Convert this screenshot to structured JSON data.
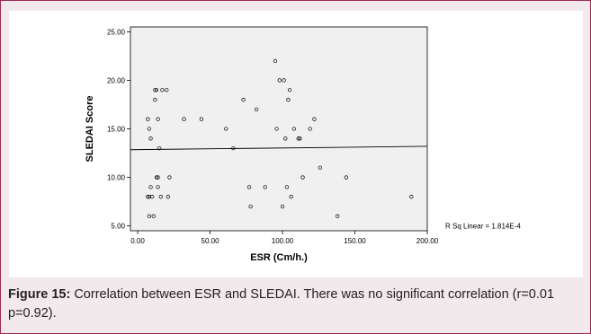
{
  "chart_data": {
    "type": "scatter",
    "xlabel": "ESR (Cm/h.)",
    "ylabel": "SLEDAI Score",
    "xlim": [
      -5,
      200
    ],
    "ylim": [
      4.5,
      25.5
    ],
    "x_ticks": [
      "0.00",
      "50.00",
      "100.00",
      "150.00",
      "200.00"
    ],
    "x_tick_values": [
      0,
      50,
      100,
      150,
      200
    ],
    "y_ticks": [
      "25.00",
      "20.00",
      "15.00",
      "10.00",
      "5.00"
    ],
    "y_tick_values": [
      25,
      20,
      15,
      10,
      5
    ],
    "grid": false,
    "plot_background": "#f0f0f0",
    "point_color": "#000000",
    "fit_line": {
      "x": [
        -5,
        200
      ],
      "y": [
        12.85,
        13.2
      ],
      "color": "#000000"
    },
    "annotation": "R Sq Linear = 1.814E-4",
    "points": [
      [
        7,
        16
      ],
      [
        8,
        15
      ],
      [
        9,
        14
      ],
      [
        7,
        8
      ],
      [
        8,
        8
      ],
      [
        10,
        8
      ],
      [
        9,
        9
      ],
      [
        8,
        6
      ],
      [
        11,
        6
      ],
      [
        12,
        19
      ],
      [
        13,
        19
      ],
      [
        12,
        18
      ],
      [
        14,
        16
      ],
      [
        15,
        13
      ],
      [
        13,
        10
      ],
      [
        14,
        10
      ],
      [
        14,
        9
      ],
      [
        16,
        8
      ],
      [
        17,
        19
      ],
      [
        20,
        19
      ],
      [
        22,
        10
      ],
      [
        21,
        8
      ],
      [
        32,
        16
      ],
      [
        44,
        16
      ],
      [
        61,
        15
      ],
      [
        66,
        13
      ],
      [
        73,
        18
      ],
      [
        77,
        9
      ],
      [
        78,
        7
      ],
      [
        82,
        17
      ],
      [
        88,
        9
      ],
      [
        95,
        22
      ],
      [
        96,
        15
      ],
      [
        98,
        20
      ],
      [
        100,
        7
      ],
      [
        101,
        20
      ],
      [
        102,
        14
      ],
      [
        103,
        9
      ],
      [
        104,
        18
      ],
      [
        105,
        19
      ],
      [
        106,
        8
      ],
      [
        108,
        15
      ],
      [
        111,
        14
      ],
      [
        112,
        14
      ],
      [
        114,
        10
      ],
      [
        119,
        15
      ],
      [
        122,
        16
      ],
      [
        126,
        11
      ],
      [
        138,
        6
      ],
      [
        144,
        10
      ],
      [
        189,
        8
      ]
    ]
  },
  "caption": {
    "label": "Figure 15:",
    "text": " Correlation between ESR and SLEDAI. There was no significant correlation (r=0.01 p=0.92)."
  }
}
